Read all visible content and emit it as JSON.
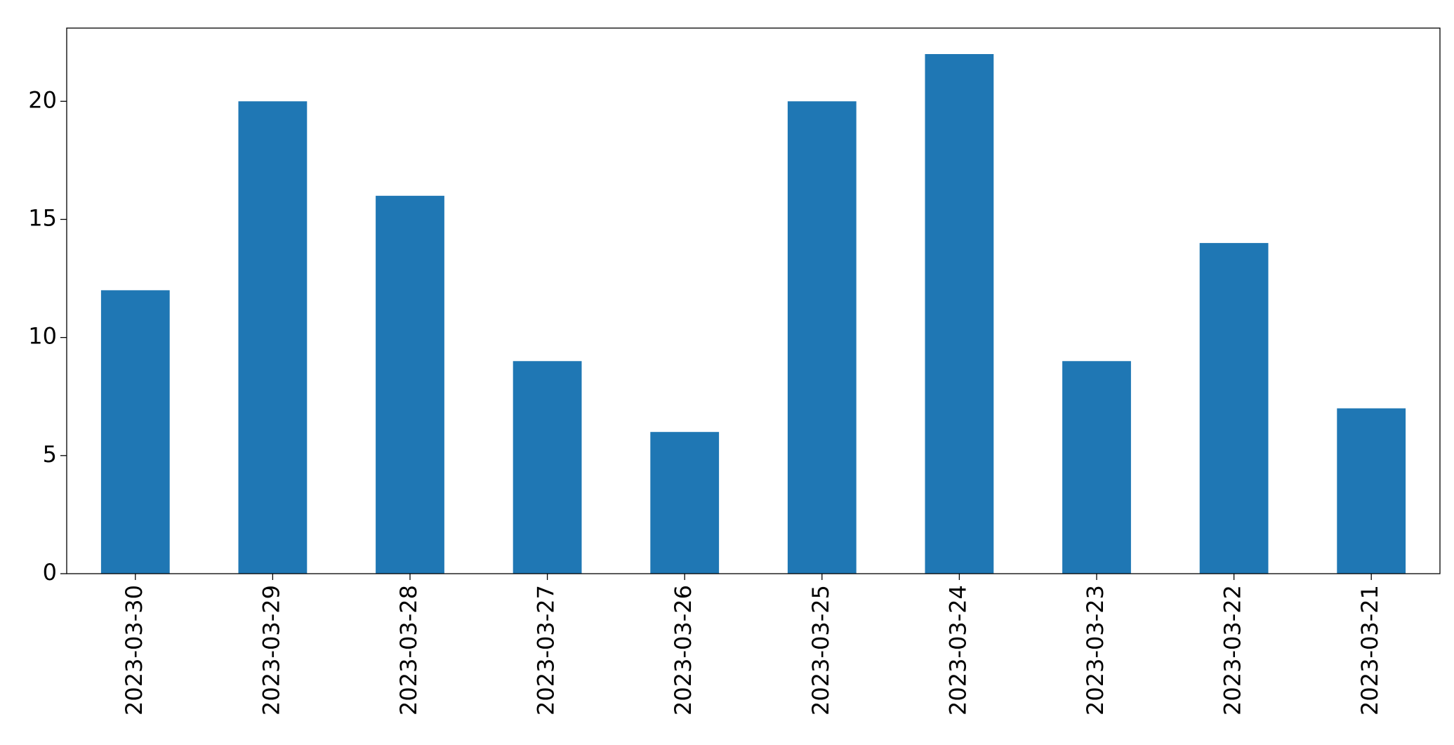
{
  "chart_data": {
    "type": "bar",
    "categories": [
      "2023-03-30",
      "2023-03-29",
      "2023-03-28",
      "2023-03-27",
      "2023-03-26",
      "2023-03-25",
      "2023-03-24",
      "2023-03-23",
      "2023-03-22",
      "2023-03-21"
    ],
    "values": [
      12,
      20,
      16,
      9,
      6,
      20,
      22,
      9,
      14,
      7
    ],
    "color": "#1f77b4",
    "ylim": [
      0,
      23.1
    ],
    "yticks": [
      0,
      5,
      10,
      15,
      20
    ],
    "grid": false
  }
}
